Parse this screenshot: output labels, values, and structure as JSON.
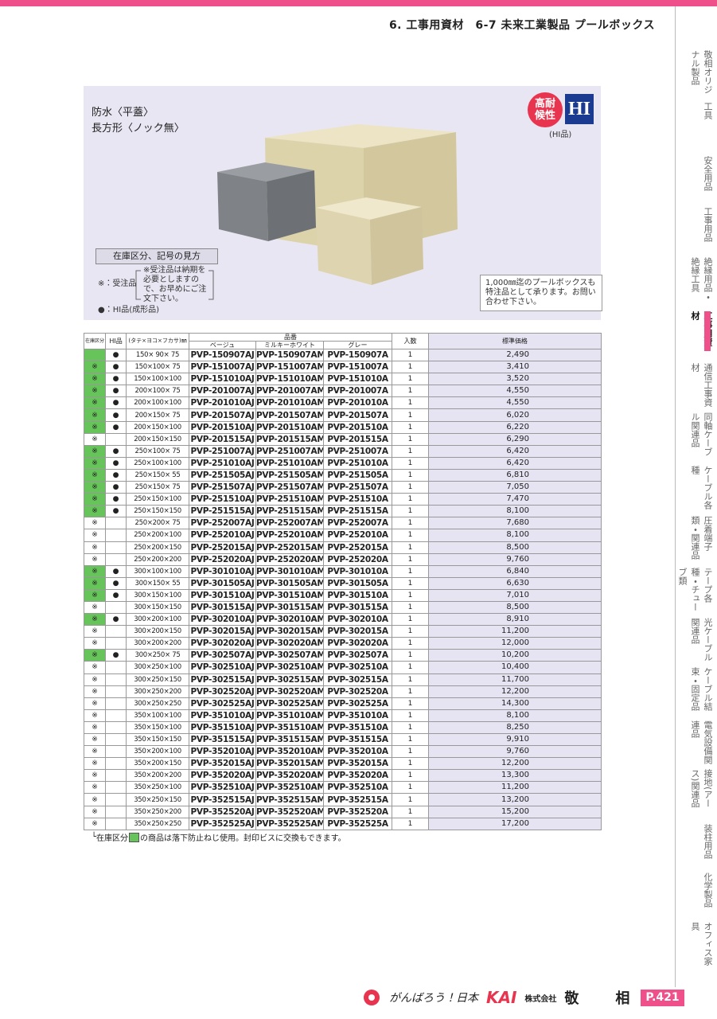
{
  "header": {
    "title": "6.  工事用資材　6-7 未来工業製品 プールボックス"
  },
  "sidebar": {
    "items": [
      "敬相オリジナル製品",
      "工具",
      "安全用品",
      "工事用品",
      "絶縁用品・絶縁工具",
      "工事用資材",
      "通信工事資材",
      "同軸ケーブル関連品",
      "ケーブル各種",
      "圧着端子類・関連品",
      "テープ各種・チューブ類",
      "光ケーブル関連品",
      "ケーブル結束・固定品",
      "電気設備関連品",
      "接地(アース)関連品",
      "装柱用品",
      "化学製品",
      "オフィス家具"
    ],
    "active": 5
  },
  "product": {
    "title1": "防水〈平蓋〉",
    "title2": "長方形〈ノック無〉",
    "badge": "高耐候性",
    "hi_mark": "HI",
    "hi_caption": "(HI品)",
    "legend": {
      "title": "在庫区分、記号の見方",
      "order_mark": "※：受注品",
      "order_note": "※受注品は納期を必要としますので、お早めにご注文下さい。",
      "hi_note": "●：HI品(成形品)"
    },
    "special_note": "1,000㎜迄のプールボックスも特注品として承ります。お問い合わせ下さい。"
  },
  "table": {
    "headers": {
      "stock": "在庫区分",
      "hi": "HI品",
      "size": "(タテ×ヨコ×フカサ)㎜",
      "code": "品番",
      "beige": "ベージュ",
      "milky": "ミルキーホワイト",
      "gray": "グレー",
      "qty": "入数",
      "price": "標準価格"
    },
    "rows": [
      {
        "stock": null,
        "green": true,
        "hi": "●",
        "size": "150× 90× 75",
        "codes": [
          "PVP-150907AJ",
          "PVP-150907AM",
          "PVP-150907A"
        ],
        "qty": 1,
        "price": "2,490"
      },
      {
        "stock": "※",
        "green": true,
        "hi": "●",
        "size": "150×100× 75",
        "codes": [
          "PVP-151007AJ",
          "PVP-151007AM",
          "PVP-151007A"
        ],
        "qty": 1,
        "price": "3,410"
      },
      {
        "stock": "※",
        "green": true,
        "hi": "●",
        "size": "150×100×100",
        "codes": [
          "PVP-151010AJ",
          "PVP-151010AM",
          "PVP-151010A"
        ],
        "qty": 1,
        "price": "3,520"
      },
      {
        "stock": "※",
        "green": true,
        "hi": "●",
        "size": "200×100× 75",
        "codes": [
          "PVP-201007AJ",
          "PVP-201007AM",
          "PVP-201007A"
        ],
        "qty": 1,
        "price": "4,550"
      },
      {
        "stock": "※",
        "green": true,
        "hi": "●",
        "size": "200×100×100",
        "codes": [
          "PVP-201010AJ",
          "PVP-201010AM",
          "PVP-201010A"
        ],
        "qty": 1,
        "price": "4,550"
      },
      {
        "stock": "※",
        "green": true,
        "hi": "●",
        "size": "200×150× 75",
        "codes": [
          "PVP-201507AJ",
          "PVP-201507AM",
          "PVP-201507A"
        ],
        "qty": 1,
        "price": "6,020"
      },
      {
        "stock": "※",
        "green": true,
        "hi": "●",
        "size": "200×150×100",
        "codes": [
          "PVP-201510AJ",
          "PVP-201510AM",
          "PVP-201510A"
        ],
        "qty": 1,
        "price": "6,220"
      },
      {
        "stock": "※",
        "green": false,
        "hi": null,
        "size": "200×150×150",
        "codes": [
          "PVP-201515AJ",
          "PVP-201515AM",
          "PVP-201515A"
        ],
        "qty": 1,
        "price": "6,290"
      },
      {
        "stock": "※",
        "green": true,
        "hi": "●",
        "size": "250×100× 75",
        "codes": [
          "PVP-251007AJ",
          "PVP-251007AM",
          "PVP-251007A"
        ],
        "qty": 1,
        "price": "6,420"
      },
      {
        "stock": "※",
        "green": true,
        "hi": "●",
        "size": "250×100×100",
        "codes": [
          "PVP-251010AJ",
          "PVP-251010AM",
          "PVP-251010A"
        ],
        "qty": 1,
        "price": "6,420"
      },
      {
        "stock": "※",
        "green": true,
        "hi": "●",
        "size": "250×150× 55",
        "codes": [
          "PVP-251505AJ",
          "PVP-251505AM",
          "PVP-251505A"
        ],
        "qty": 1,
        "price": "6,810"
      },
      {
        "stock": "※",
        "green": true,
        "hi": "●",
        "size": "250×150× 75",
        "codes": [
          "PVP-251507AJ",
          "PVP-251507AM",
          "PVP-251507A"
        ],
        "qty": 1,
        "price": "7,050"
      },
      {
        "stock": "※",
        "green": true,
        "hi": "●",
        "size": "250×150×100",
        "codes": [
          "PVP-251510AJ",
          "PVP-251510AM",
          "PVP-251510A"
        ],
        "qty": 1,
        "price": "7,470"
      },
      {
        "stock": "※",
        "green": true,
        "hi": "●",
        "size": "250×150×150",
        "codes": [
          "PVP-251515AJ",
          "PVP-251515AM",
          "PVP-251515A"
        ],
        "qty": 1,
        "price": "8,100"
      },
      {
        "stock": "※",
        "green": false,
        "hi": null,
        "size": "250×200× 75",
        "codes": [
          "PVP-252007AJ",
          "PVP-252007AM",
          "PVP-252007A"
        ],
        "qty": 1,
        "price": "7,680"
      },
      {
        "stock": "※",
        "green": false,
        "hi": null,
        "size": "250×200×100",
        "codes": [
          "PVP-252010AJ",
          "PVP-252010AM",
          "PVP-252010A"
        ],
        "qty": 1,
        "price": "8,100"
      },
      {
        "stock": "※",
        "green": false,
        "hi": null,
        "size": "250×200×150",
        "codes": [
          "PVP-252015AJ",
          "PVP-252015AM",
          "PVP-252015A"
        ],
        "qty": 1,
        "price": "8,500"
      },
      {
        "stock": "※",
        "green": false,
        "hi": null,
        "size": "250×200×200",
        "codes": [
          "PVP-252020AJ",
          "PVP-252020AM",
          "PVP-252020A"
        ],
        "qty": 1,
        "price": "9,760"
      },
      {
        "stock": "※",
        "green": true,
        "hi": "●",
        "size": "300×100×100",
        "codes": [
          "PVP-301010AJ",
          "PVP-301010AM",
          "PVP-301010A"
        ],
        "qty": 1,
        "price": "6,840"
      },
      {
        "stock": "※",
        "green": true,
        "hi": "●",
        "size": "300×150× 55",
        "codes": [
          "PVP-301505AJ",
          "PVP-301505AM",
          "PVP-301505A"
        ],
        "qty": 1,
        "price": "6,630"
      },
      {
        "stock": "※",
        "green": true,
        "hi": "●",
        "size": "300×150×100",
        "codes": [
          "PVP-301510AJ",
          "PVP-301510AM",
          "PVP-301510A"
        ],
        "qty": 1,
        "price": "7,010"
      },
      {
        "stock": "※",
        "green": false,
        "hi": null,
        "size": "300×150×150",
        "codes": [
          "PVP-301515AJ",
          "PVP-301515AM",
          "PVP-301515A"
        ],
        "qty": 1,
        "price": "8,500"
      },
      {
        "stock": "※",
        "green": true,
        "hi": "●",
        "size": "300×200×100",
        "codes": [
          "PVP-302010AJ",
          "PVP-302010AM",
          "PVP-302010A"
        ],
        "qty": 1,
        "price": "8,910"
      },
      {
        "stock": "※",
        "green": false,
        "hi": null,
        "size": "300×200×150",
        "codes": [
          "PVP-302015AJ",
          "PVP-302015AM",
          "PVP-302015A"
        ],
        "qty": 1,
        "price": "11,200"
      },
      {
        "stock": "※",
        "green": false,
        "hi": null,
        "size": "300×200×200",
        "codes": [
          "PVP-302020AJ",
          "PVP-302020AM",
          "PVP-302020A"
        ],
        "qty": 1,
        "price": "12,000"
      },
      {
        "stock": "※",
        "green": true,
        "hi": "●",
        "size": "300×250× 75",
        "codes": [
          "PVP-302507AJ",
          "PVP-302507AM",
          "PVP-302507A"
        ],
        "qty": 1,
        "price": "10,200"
      },
      {
        "stock": "※",
        "green": false,
        "hi": null,
        "size": "300×250×100",
        "codes": [
          "PVP-302510AJ",
          "PVP-302510AM",
          "PVP-302510A"
        ],
        "qty": 1,
        "price": "10,400"
      },
      {
        "stock": "※",
        "green": false,
        "hi": null,
        "size": "300×250×150",
        "codes": [
          "PVP-302515AJ",
          "PVP-302515AM",
          "PVP-302515A"
        ],
        "qty": 1,
        "price": "11,700"
      },
      {
        "stock": "※",
        "green": false,
        "hi": null,
        "size": "300×250×200",
        "codes": [
          "PVP-302520AJ",
          "PVP-302520AM",
          "PVP-302520A"
        ],
        "qty": 1,
        "price": "12,200"
      },
      {
        "stock": "※",
        "green": false,
        "hi": null,
        "size": "300×250×250",
        "codes": [
          "PVP-302525AJ",
          "PVP-302525AM",
          "PVP-302525A"
        ],
        "qty": 1,
        "price": "14,300"
      },
      {
        "stock": "※",
        "green": false,
        "hi": null,
        "size": "350×100×100",
        "codes": [
          "PVP-351010AJ",
          "PVP-351010AM",
          "PVP-351010A"
        ],
        "qty": 1,
        "price": "8,100"
      },
      {
        "stock": "※",
        "green": false,
        "hi": null,
        "size": "350×150×100",
        "codes": [
          "PVP-351510AJ",
          "PVP-351510AM",
          "PVP-351510A"
        ],
        "qty": 1,
        "price": "8,250"
      },
      {
        "stock": "※",
        "green": false,
        "hi": null,
        "size": "350×150×150",
        "codes": [
          "PVP-351515AJ",
          "PVP-351515AM",
          "PVP-351515A"
        ],
        "qty": 1,
        "price": "9,910"
      },
      {
        "stock": "※",
        "green": false,
        "hi": null,
        "size": "350×200×100",
        "codes": [
          "PVP-352010AJ",
          "PVP-352010AM",
          "PVP-352010A"
        ],
        "qty": 1,
        "price": "9,760"
      },
      {
        "stock": "※",
        "green": false,
        "hi": null,
        "size": "350×200×150",
        "codes": [
          "PVP-352015AJ",
          "PVP-352015AM",
          "PVP-352015A"
        ],
        "qty": 1,
        "price": "12,200"
      },
      {
        "stock": "※",
        "green": false,
        "hi": null,
        "size": "350×200×200",
        "codes": [
          "PVP-352020AJ",
          "PVP-352020AM",
          "PVP-352020A"
        ],
        "qty": 1,
        "price": "13,300"
      },
      {
        "stock": "※",
        "green": false,
        "hi": null,
        "size": "350×250×100",
        "codes": [
          "PVP-352510AJ",
          "PVP-352510AM",
          "PVP-352510A"
        ],
        "qty": 1,
        "price": "11,200"
      },
      {
        "stock": "※",
        "green": false,
        "hi": null,
        "size": "350×250×150",
        "codes": [
          "PVP-352515AJ",
          "PVP-352515AM",
          "PVP-352515A"
        ],
        "qty": 1,
        "price": "13,200"
      },
      {
        "stock": "※",
        "green": false,
        "hi": null,
        "size": "350×250×200",
        "codes": [
          "PVP-352520AJ",
          "PVP-352520AM",
          "PVP-352520A"
        ],
        "qty": 1,
        "price": "15,200"
      },
      {
        "stock": "※",
        "green": false,
        "hi": null,
        "size": "350×250×250",
        "codes": [
          "PVP-352525AJ",
          "PVP-352525AM",
          "PVP-352525A"
        ],
        "qty": 1,
        "price": "17,200"
      }
    ]
  },
  "footnote": {
    "before": "在庫区分",
    "after": "の商品は落下防止ねじ使用。封印ビスに交換もできます。"
  },
  "footer": {
    "slogan": "がんばろう！日本",
    "brand": "KAI",
    "company_prefix": "株式会社",
    "company_name": "敬　相",
    "page": "P.421"
  }
}
